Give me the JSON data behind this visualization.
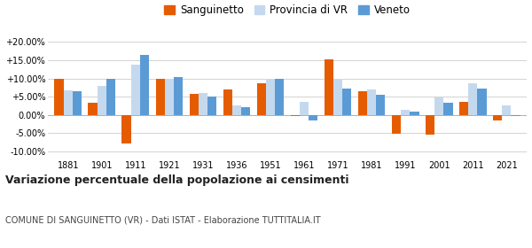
{
  "years": [
    1881,
    1901,
    1911,
    1921,
    1931,
    1936,
    1951,
    1961,
    1971,
    1981,
    1991,
    2001,
    2011,
    2021
  ],
  "sanguinetto": [
    9.8,
    3.3,
    -7.8,
    10.0,
    5.8,
    7.0,
    8.7,
    -0.3,
    15.3,
    6.5,
    -5.2,
    -5.3,
    3.5,
    -1.5
  ],
  "provincia_vr": [
    6.8,
    8.0,
    13.7,
    9.8,
    6.0,
    2.5,
    10.0,
    3.5,
    10.0,
    7.0,
    1.5,
    4.8,
    8.8,
    2.7
  ],
  "veneto": [
    6.5,
    10.0,
    16.5,
    10.3,
    5.0,
    2.2,
    10.0,
    -1.5,
    7.2,
    5.5,
    0.8,
    3.3,
    7.2,
    -0.2
  ],
  "color_sanguinetto": "#e55c00",
  "color_provincia": "#c5d9ee",
  "color_veneto": "#5b9bd5",
  "title": "Variazione percentuale della popolazione ai censimenti",
  "subtitle": "COMUNE DI SANGUINETTO (VR) - Dati ISTAT - Elaborazione TUTTITALIA.IT",
  "ylim": [
    -12,
    22
  ],
  "yticks": [
    -10.0,
    -5.0,
    0.0,
    5.0,
    10.0,
    15.0,
    20.0
  ],
  "ytick_labels": [
    "-10.00%",
    "-5.00%",
    "0.00%",
    "+5.00%",
    "+10.00%",
    "+15.00%",
    "+20.00%"
  ],
  "bar_width": 0.27,
  "background_color": "#ffffff",
  "grid_color": "#cccccc",
  "legend_fontsize": 8.5,
  "tick_fontsize": 7,
  "title_fontsize": 9,
  "subtitle_fontsize": 7
}
